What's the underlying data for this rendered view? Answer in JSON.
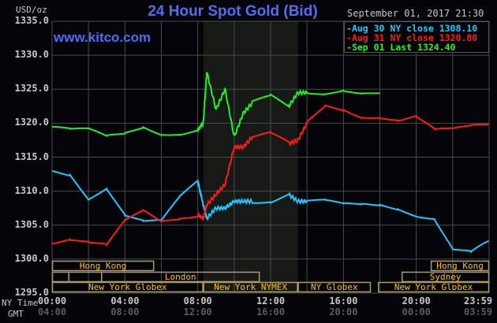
{
  "header": {
    "unit": "USD/oz",
    "title": "24 Hour Spot Gold (Bid)",
    "brand": "www.kitco.com",
    "timestamp": "September 01, 2017 21:30"
  },
  "legend": [
    {
      "label": "Aug 30 NY close 1308.10",
      "color": "#1ec8ff"
    },
    {
      "label": "Aug 31 NY close 1320.80",
      "color": "#ff1a1a"
    },
    {
      "label": "Sep 01 Last 1324.40",
      "color": "#22f022"
    }
  ],
  "axes": {
    "y_ticks": [
      "1335.0",
      "1330.0",
      "1325.0",
      "1320.0",
      "1315.0",
      "1310.0",
      "1305.0",
      "1300.0",
      "1295.0"
    ],
    "x_caption_ny": "NY Time",
    "x_caption_gmt": "GMT",
    "x_ny": [
      "00:00",
      "04:00",
      "08:00",
      "12:00",
      "16:00",
      "20:00",
      "23:59"
    ],
    "x_gmt": [
      "04:00",
      "08:00",
      "12:00",
      "16:00",
      "20:00",
      "00:00",
      "03:59"
    ]
  },
  "sessions": [
    {
      "label": "Hong Kong",
      "row": 0
    },
    {
      "label": "London",
      "row": 1
    },
    {
      "label": "New York Globex",
      "row": 2
    },
    {
      "label": "New York NYMEX",
      "row": 2
    },
    {
      "label": "NY Globex",
      "row": 2
    },
    {
      "label": "Hong Kong",
      "row": 0
    },
    {
      "label": "Sydney",
      "row": 1
    },
    {
      "label": "New York Globex",
      "row": 2
    }
  ],
  "chart_data": {
    "type": "line",
    "title": "24 Hour Spot Gold (Bid)",
    "ylabel": "USD/oz",
    "xlabel": "NY Time",
    "ylim": [
      1295,
      1335
    ],
    "xlim_hours": [
      0,
      24
    ],
    "grid": true,
    "legend_position": "top-right",
    "shaded_region_hours": [
      8.3,
      13.5
    ],
    "x": [
      0,
      1,
      2,
      3,
      4,
      5,
      6,
      7,
      8,
      8.3,
      8.5,
      9,
      9.5,
      10,
      10.5,
      11,
      12,
      13,
      13.5,
      14,
      15,
      16,
      17,
      18,
      19,
      20,
      21,
      22,
      23,
      23.98
    ],
    "series": [
      {
        "name": "Aug 30 NY close 1308.10",
        "color": "#1ec8ff",
        "values": [
          1313.0,
          1312.5,
          1309.0,
          1310.5,
          1306.5,
          1305.5,
          1305.5,
          1309.0,
          1311.5,
          1308.0,
          1306.0,
          1307.5,
          1307.5,
          1308.5,
          1308.5,
          1308.5,
          1308.5,
          1309.5,
          1308.5,
          1308.5,
          1308.5,
          1308.0,
          1308.0,
          1308.0,
          1307.5,
          1306.5,
          1306.0,
          1301.5,
          1301.0,
          1302.5
        ]
      },
      {
        "name": "Aug 31 NY close 1320.80",
        "color": "#ff1a1a",
        "values": [
          1302.5,
          1303.0,
          1302.5,
          1302.0,
          1305.5,
          1307.0,
          1305.5,
          1306.0,
          1306.5,
          1306.0,
          1308.0,
          1309.5,
          1311.0,
          1316.5,
          1316.5,
          1318.0,
          1318.5,
          1317.0,
          1317.5,
          1320.0,
          1322.5,
          1322.0,
          1321.0,
          1321.0,
          1320.5,
          1321.0,
          1319.0,
          1319.0,
          1319.5,
          1320.0
        ]
      },
      {
        "name": "Sep 01 Last 1324.40",
        "color": "#22f022",
        "values": [
          1319.5,
          1319.0,
          1319.0,
          1318.0,
          1318.5,
          1319.5,
          1318.5,
          1318.5,
          1319.0,
          1320.0,
          1327.5,
          1322.0,
          1325.0,
          1318.0,
          1321.5,
          1323.0,
          1324.0,
          1322.5,
          1324.5,
          1324.5,
          1324.5,
          1325.0,
          1324.4,
          1324.4,
          null,
          null,
          null,
          null,
          null,
          null
        ]
      }
    ]
  }
}
